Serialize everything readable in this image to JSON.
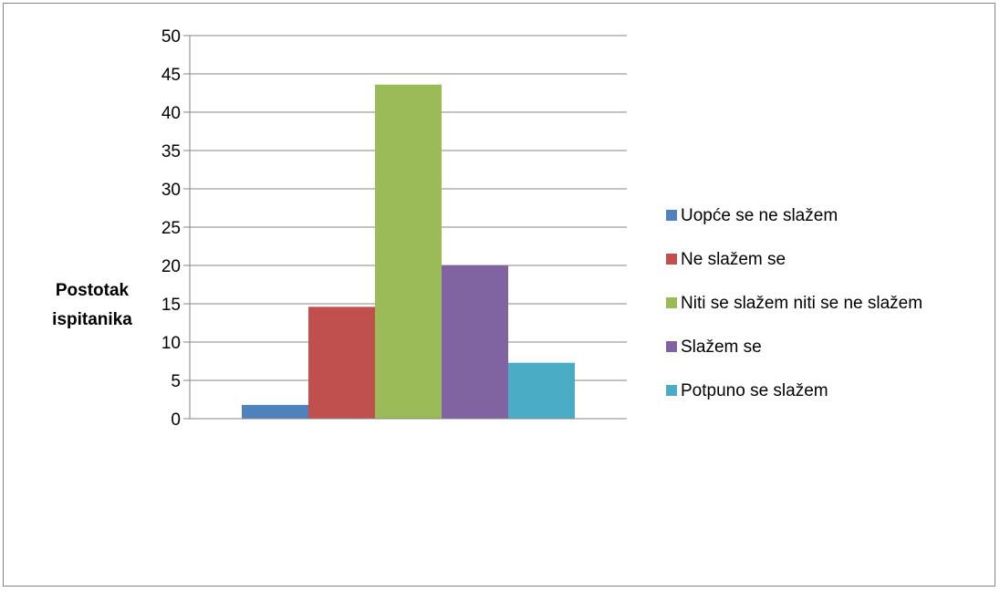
{
  "chart_data": {
    "type": "bar",
    "title": "",
    "xlabel": "",
    "ylabel": [
      "Postotak",
      "ispitanika"
    ],
    "ylim": [
      0,
      50
    ],
    "yticks": [
      0,
      5,
      10,
      15,
      20,
      25,
      30,
      35,
      40,
      45,
      50
    ],
    "grid": true,
    "legend_position": "right",
    "categories": [
      ""
    ],
    "series": [
      {
        "name": "Uopće se ne slažem",
        "values": [
          1.8
        ],
        "color": "#4F81BD"
      },
      {
        "name": "Ne slažem se",
        "values": [
          14.6
        ],
        "color": "#C0504D"
      },
      {
        "name": "Niti se slažem niti se ne slažem",
        "values": [
          43.6
        ],
        "color": "#9BBB59"
      },
      {
        "name": "Slažem se",
        "values": [
          20.0
        ],
        "color": "#8064A2"
      },
      {
        "name": "Potpuno se slažem",
        "values": [
          7.3
        ],
        "color": "#4BACC6"
      }
    ]
  }
}
